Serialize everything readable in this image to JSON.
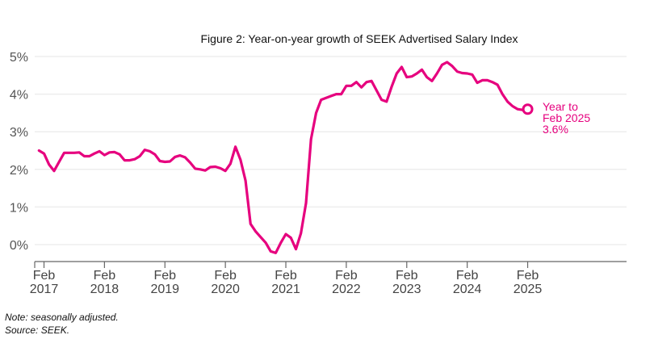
{
  "chart_data": {
    "type": "line",
    "title": "Figure 2: Year-on-year growth of SEEK Advertised Salary Index",
    "xlabel": "",
    "ylabel": "",
    "ylim": [
      0,
      5
    ],
    "y_ticks": [
      "0%",
      "1%",
      "2%",
      "3%",
      "4%",
      "5%"
    ],
    "y_tick_values": [
      0,
      1,
      2,
      3,
      4,
      5
    ],
    "x_ticks": [
      {
        "month": "Feb",
        "year": "2017"
      },
      {
        "month": "Feb",
        "year": "2018"
      },
      {
        "month": "Feb",
        "year": "2019"
      },
      {
        "month": "Feb",
        "year": "2020"
      },
      {
        "month": "Feb",
        "year": "2021"
      },
      {
        "month": "Feb",
        "year": "2022"
      },
      {
        "month": "Feb",
        "year": "2023"
      },
      {
        "month": "Feb",
        "year": "2024"
      },
      {
        "month": "Feb",
        "year": "2025"
      }
    ],
    "grid": true,
    "x_start": "Jan 2017",
    "x_frequency": "monthly",
    "series": [
      {
        "name": "Year-on-year growth (%)",
        "color": "#E6007E",
        "values": [
          2.5,
          2.42,
          2.13,
          1.96,
          2.2,
          2.44,
          2.44,
          2.44,
          2.45,
          2.35,
          2.35,
          2.42,
          2.48,
          2.38,
          2.45,
          2.46,
          2.4,
          2.24,
          2.24,
          2.27,
          2.35,
          2.52,
          2.48,
          2.4,
          2.22,
          2.2,
          2.21,
          2.33,
          2.37,
          2.32,
          2.18,
          2.02,
          2.0,
          1.97,
          2.06,
          2.07,
          2.03,
          1.96,
          2.15,
          2.6,
          2.25,
          1.7,
          0.55,
          0.35,
          0.2,
          0.05,
          -0.18,
          -0.22,
          0.05,
          0.28,
          0.18,
          -0.12,
          0.3,
          1.1,
          2.8,
          3.5,
          3.85,
          3.9,
          3.95,
          4.0,
          4.0,
          4.22,
          4.22,
          4.32,
          4.18,
          4.32,
          4.35,
          4.1,
          3.85,
          3.8,
          4.2,
          4.55,
          4.72,
          4.45,
          4.47,
          4.55,
          4.65,
          4.45,
          4.35,
          4.55,
          4.78,
          4.85,
          4.75,
          4.6,
          4.56,
          4.55,
          4.52,
          4.3,
          4.37,
          4.37,
          4.32,
          4.25,
          4.0,
          3.8,
          3.68,
          3.6,
          3.58,
          3.6
        ]
      }
    ],
    "annotation": {
      "lines": [
        "Year to",
        "Feb 2025",
        "3.6%"
      ],
      "value": 3.6
    }
  },
  "notes": {
    "note": "Note: seasonally adjusted.",
    "source": "Source: SEEK."
  }
}
